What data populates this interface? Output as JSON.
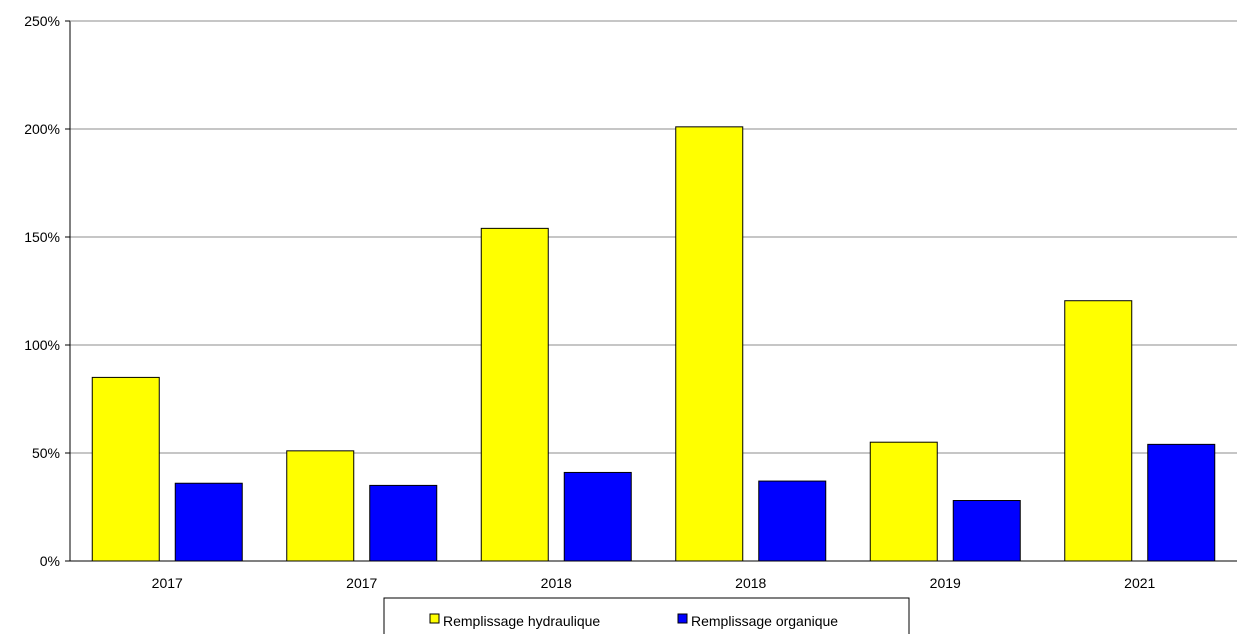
{
  "chart_data": {
    "type": "bar",
    "title": "",
    "xlabel": "",
    "ylabel": "",
    "categories": [
      "2017",
      "2017",
      "2018",
      "2018",
      "2019",
      "2021"
    ],
    "series": [
      {
        "name": "Remplissage hydraulique",
        "color": "#ffff00",
        "values": [
          85,
          51,
          154,
          201,
          55,
          120.5
        ]
      },
      {
        "name": "Remplissage organique",
        "color": "#0000ff",
        "values": [
          36,
          35,
          41,
          37,
          28,
          54
        ]
      }
    ],
    "ylim": [
      0,
      250
    ],
    "yticks": [
      0,
      50,
      100,
      150,
      200,
      250
    ],
    "ytick_labels": [
      "0%",
      "50%",
      "100%",
      "150%",
      "200%",
      "250%"
    ],
    "grid": true,
    "legend_position": "bottom-center"
  }
}
